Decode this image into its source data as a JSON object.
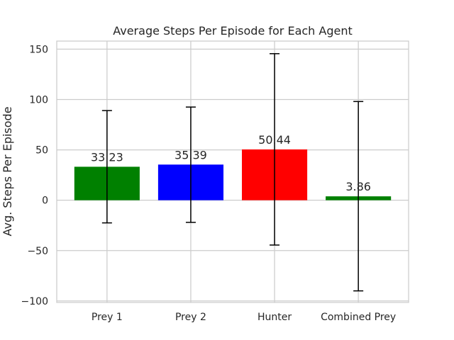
{
  "chart_data": {
    "type": "bar",
    "title": "Average Steps Per Episode for Each Agent",
    "xlabel": "",
    "ylabel": "Avg. Steps Per Episode",
    "categories": [
      "Prey 1",
      "Prey 2",
      "Hunter",
      "Combined Prey"
    ],
    "values": [
      33.23,
      35.39,
      50.44,
      3.86
    ],
    "value_labels": [
      "33.23",
      "35.39",
      "50.44",
      "3.86"
    ],
    "error_low": [
      -22.5,
      -22.0,
      -44.5,
      -90.0
    ],
    "error_high": [
      89.0,
      92.5,
      145.5,
      98.0
    ],
    "colors": [
      "#008000",
      "#0000ff",
      "#ff0000",
      "#008000"
    ],
    "ylim": [
      -101.5,
      158
    ],
    "yticks": [
      -100,
      -50,
      0,
      50,
      100,
      150
    ],
    "ytick_labels": [
      "−100",
      "−50",
      "0",
      "50",
      "100",
      "150"
    ],
    "grid": true,
    "legend": "none"
  }
}
